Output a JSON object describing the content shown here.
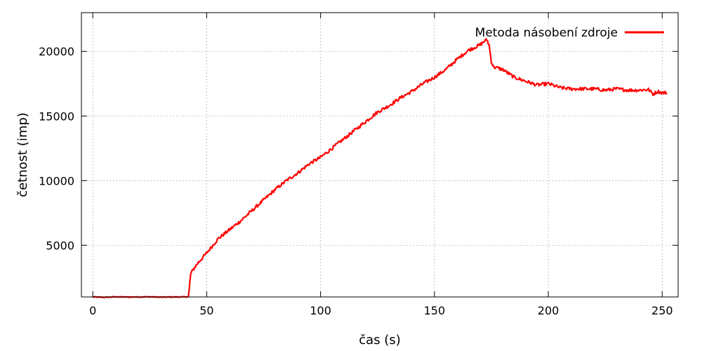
{
  "chart_data": {
    "type": "line",
    "xlabel": "čas (s)",
    "ylabel": "četnost (imp)",
    "xlim": [
      -5,
      257
    ],
    "ylim": [
      1000,
      23000
    ],
    "x_ticks": [
      0,
      50,
      100,
      150,
      200,
      250
    ],
    "y_ticks": [
      5000,
      10000,
      15000,
      20000
    ],
    "grid": true,
    "legend_position": "top-right",
    "series": [
      {
        "name": "Metoda násobení zdroje",
        "color": "#ff0000",
        "x": [
          0,
          5,
          10,
          15,
          20,
          25,
          30,
          35,
          40,
          42,
          43,
          44,
          46,
          48,
          50,
          55,
          60,
          65,
          70,
          75,
          80,
          85,
          90,
          95,
          100,
          105,
          110,
          115,
          120,
          125,
          130,
          135,
          140,
          145,
          150,
          155,
          160,
          165,
          170,
          172,
          173,
          174,
          175,
          176,
          178,
          180,
          185,
          190,
          195,
          200,
          205,
          210,
          215,
          220,
          225,
          230,
          235,
          240,
          244,
          246,
          248,
          250,
          252
        ],
        "y": [
          1000,
          970,
          1010,
          990,
          1000,
          1010,
          980,
          1000,
          1000,
          1020,
          2800,
          3100,
          3600,
          4000,
          4400,
          5500,
          6200,
          6900,
          7700,
          8500,
          9300,
          10000,
          10600,
          11300,
          11800,
          12500,
          13200,
          13900,
          14600,
          15300,
          15800,
          16400,
          16900,
          17500,
          18000,
          18600,
          19400,
          20100,
          20500,
          20800,
          20900,
          20500,
          19200,
          18800,
          18700,
          18600,
          18000,
          17700,
          17400,
          17500,
          17200,
          17100,
          17100,
          17100,
          17000,
          17100,
          17000,
          17000,
          17050,
          16700,
          16900,
          16800,
          16800
        ]
      }
    ]
  }
}
